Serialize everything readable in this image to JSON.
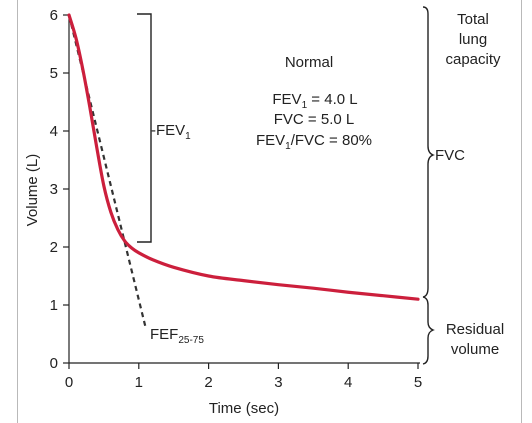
{
  "chart_data": {
    "type": "line",
    "xlabel": "Time (sec)",
    "ylabel": "Volume (L)",
    "xlim": [
      0,
      5
    ],
    "ylim": [
      0,
      6
    ],
    "x_ticks": [
      "0",
      "1",
      "2",
      "3",
      "4",
      "5"
    ],
    "y_ticks": [
      "0",
      "1",
      "2",
      "3",
      "4",
      "5",
      "6"
    ],
    "grid": false,
    "series": [
      {
        "style": "solid",
        "color": "#cc1f3c",
        "x": [
          0,
          0.1,
          0.2,
          0.3,
          0.4,
          0.5,
          0.6,
          0.7,
          0.8,
          0.9,
          1.0,
          1.2,
          1.5,
          2.0,
          2.5,
          3.0,
          3.5,
          4.0,
          4.5,
          5.0
        ],
        "y": [
          6.0,
          5.6,
          5.05,
          4.4,
          3.7,
          3.05,
          2.6,
          2.3,
          2.1,
          1.98,
          1.9,
          1.78,
          1.65,
          1.5,
          1.42,
          1.35,
          1.29,
          1.22,
          1.16,
          1.1
        ]
      },
      {
        "style": "dashed",
        "color": "#333333",
        "x": [
          0,
          1.1
        ],
        "y": [
          6.0,
          0.6
        ]
      }
    ],
    "annotations": {
      "normal": "Normal",
      "fev1_value": {
        "prefix": "FEV",
        "sub": "1",
        "suffix": " = 4.0 L"
      },
      "fvc_value": "FVC = 5.0 L",
      "ratio": {
        "prefix": "FEV",
        "sub": "1",
        "suffix": "/FVC = 80%"
      },
      "fev1_label": {
        "prefix": "-FEV",
        "sub": "1"
      },
      "fef_label": {
        "prefix": "FEF",
        "sub": "25-75"
      },
      "fvc_label": "FVC",
      "total_lung_capacity": [
        "Total",
        "lung",
        "capacity"
      ],
      "residual_volume": [
        "Residual",
        "volume"
      ]
    },
    "colors": {
      "curve": "#cc1f3c",
      "dashed": "#333333",
      "axis": "#222222"
    }
  }
}
